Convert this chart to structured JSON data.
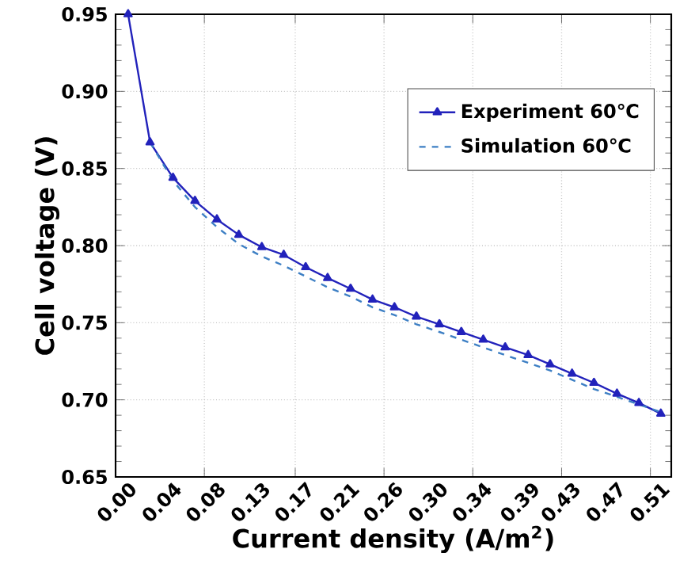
{
  "chart_data": {
    "type": "line",
    "xlabel": "Current density (A/m$^{2}$)",
    "ylabel": "Cell voltage (V)",
    "x": [
      0,
      0.021,
      0.043,
      0.064,
      0.085,
      0.106,
      0.128,
      0.149,
      0.17,
      0.191,
      0.213,
      0.234,
      0.255,
      0.276,
      0.298,
      0.319,
      0.34,
      0.361,
      0.383,
      0.404,
      0.425,
      0.446,
      0.468,
      0.489,
      0.51
    ],
    "series": [
      {
        "name": "Experiment  60℃",
        "color": "#2222bb",
        "marker": "triangle",
        "line_style": "solid",
        "values": [
          0.95,
          0.867,
          0.844,
          0.829,
          0.817,
          0.807,
          0.799,
          0.794,
          0.786,
          0.779,
          0.772,
          0.765,
          0.76,
          0.754,
          0.749,
          0.744,
          0.739,
          0.734,
          0.729,
          0.723,
          0.717,
          0.711,
          0.704,
          0.698,
          0.691
        ]
      },
      {
        "name": "Simulation  60℃",
        "color": "#3d7fc4",
        "marker": "none",
        "line_style": "dashed",
        "values": [
          null,
          0.867,
          0.842,
          0.825,
          0.812,
          0.801,
          0.793,
          0.787,
          0.78,
          0.773,
          0.767,
          0.76,
          0.755,
          0.749,
          0.744,
          0.739,
          0.734,
          0.729,
          0.724,
          0.719,
          0.713,
          0.707,
          0.702,
          0.697,
          0.692
        ]
      }
    ],
    "xlim": [
      -0.012,
      0.52
    ],
    "xticks": [
      {
        "value": 0,
        "label": "0.00"
      },
      {
        "value": 0.043,
        "label": "0.04"
      },
      {
        "value": 0.085,
        "label": "0.08"
      },
      {
        "value": 0.128,
        "label": "0.13"
      },
      {
        "value": 0.17,
        "label": "0.17"
      },
      {
        "value": 0.213,
        "label": "0.21"
      },
      {
        "value": 0.255,
        "label": "0.26"
      },
      {
        "value": 0.298,
        "label": "0.30"
      },
      {
        "value": 0.34,
        "label": "0.34"
      },
      {
        "value": 0.386,
        "label": "0.39"
      },
      {
        "value": 0.425,
        "label": "0.43"
      },
      {
        "value": 0.468,
        "label": "0.47"
      },
      {
        "value": 0.51,
        "label": "0.51"
      },
      {
        "value": 0.073,
        "label": null
      },
      {
        "value": 0.16,
        "label": null
      },
      {
        "value": 0.245,
        "label": null
      },
      {
        "value": 0.33,
        "label": null
      },
      {
        "value": 0.415,
        "label": null
      },
      {
        "value": 0.5,
        "label": null
      }
    ],
    "ylim": [
      0.65,
      0.95
    ],
    "yticks": [
      {
        "value": 0.65,
        "label": "0.65"
      },
      {
        "value": 0.7,
        "label": "0.70"
      },
      {
        "value": 0.75,
        "label": "0.75"
      },
      {
        "value": 0.8,
        "label": "0.80"
      },
      {
        "value": 0.85,
        "label": "0.85"
      },
      {
        "value": 0.9,
        "label": "0.90"
      },
      {
        "value": 0.95,
        "label": "0.95"
      }
    ],
    "grid": true,
    "legend": "top right"
  }
}
